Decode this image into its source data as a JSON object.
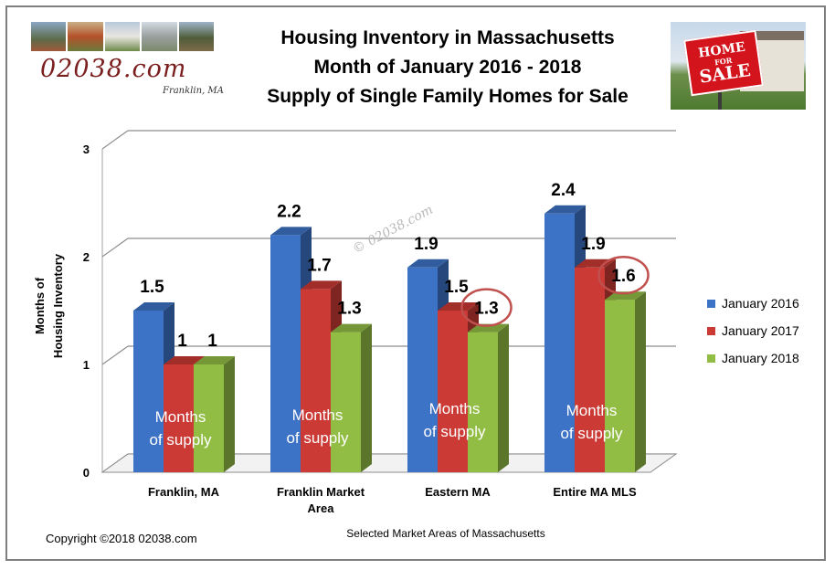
{
  "header": {
    "brand": "02038.com",
    "brand_sub": "Franklin, MA",
    "title_lines": [
      "Housing Inventory in Massachusetts",
      "Month of January  2016 - 2018",
      "Supply of Single Family Homes for Sale"
    ],
    "sign": {
      "line1": "HOME",
      "line2": "FOR",
      "line3": "SALE"
    }
  },
  "chart_data": {
    "type": "bar",
    "title": "Housing Inventory in Massachusetts Month of January 2016 - 2018 Supply of Single Family Homes for Sale",
    "xlabel": "Selected Market Areas of Massachusetts",
    "ylabel_lines": [
      "Months of",
      "Housing Inventory"
    ],
    "ylim": [
      0,
      3
    ],
    "yticks": [
      "0",
      "1",
      "2",
      "3"
    ],
    "grid": true,
    "legend_position": "right",
    "categories": [
      [
        "Franklin, MA"
      ],
      [
        "Franklin Market",
        "Area"
      ],
      [
        "Eastern MA"
      ],
      [
        "Entire MA MLS"
      ]
    ],
    "series": [
      {
        "name": "January 2016",
        "color": "#3d73c6",
        "values": [
          1.5,
          2.2,
          1.9,
          2.4
        ],
        "labels": [
          "1.5",
          "2.2",
          "1.9",
          "2.4"
        ]
      },
      {
        "name": "January 2017",
        "color": "#cb3a35",
        "values": [
          1,
          1.7,
          1.5,
          1.9
        ],
        "labels": [
          "1",
          "1.7",
          "1.5",
          "1.9"
        ]
      },
      {
        "name": "January 2018",
        "color": "#92bd45",
        "values": [
          1,
          1.3,
          1.3,
          1.6
        ],
        "labels": [
          "1",
          "1.3",
          "1.3",
          "1.6"
        ]
      }
    ],
    "bar_caption_lines": [
      "Months",
      "of supply"
    ],
    "highlighted": [
      [
        2,
        2
      ],
      [
        3,
        2
      ]
    ],
    "watermark": "© 02038.com"
  },
  "footer": {
    "copyright": "Copyright ©2018  02038.com"
  }
}
